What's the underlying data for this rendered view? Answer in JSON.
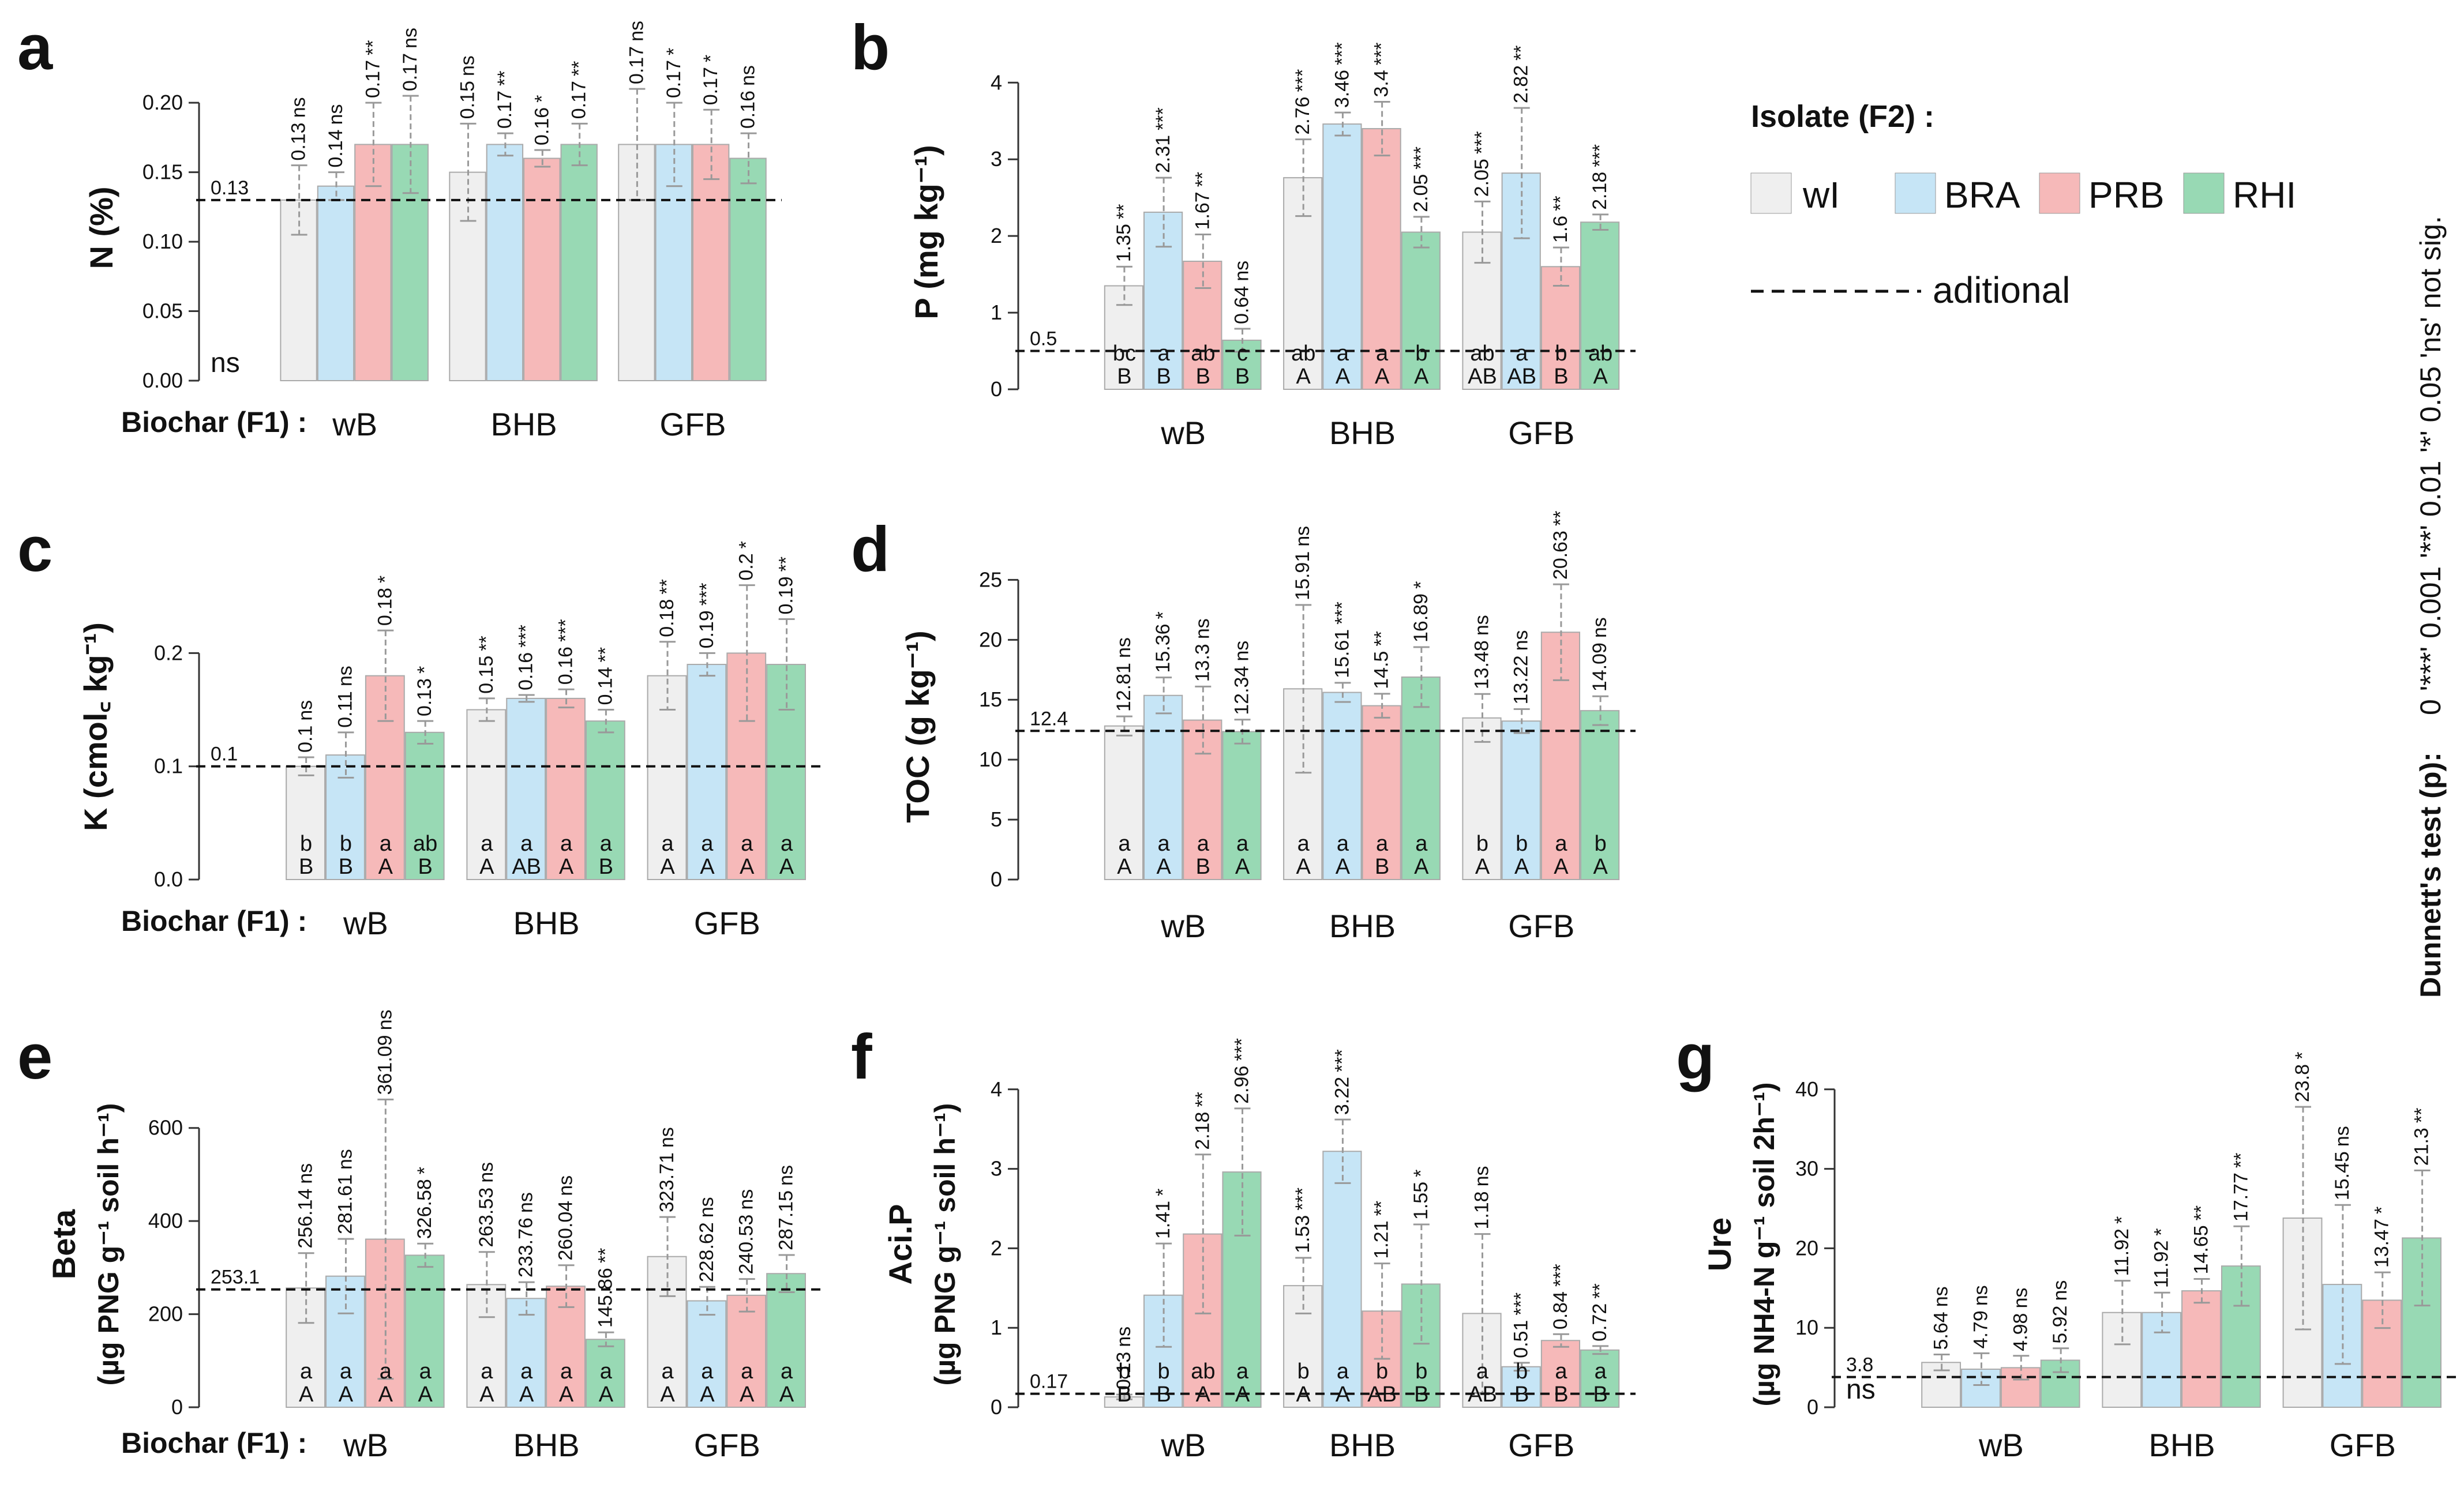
{
  "legend": {
    "title": "Isolate (F2) :",
    "items": [
      "wI",
      "BRA",
      "PRB",
      "RHI"
    ],
    "colors": [
      "#efefef",
      "#c6e5f6",
      "#f6b9b9",
      "#98d9b4"
    ],
    "dashed_label": "aditional"
  },
  "biochar_label": "Biochar (F1) :",
  "dunnett": {
    "title": "Dunnett's test (p):",
    "scale": "0 '***' 0.001 '**' 0.01 '*' 0.05 'ns' not sig."
  },
  "chart_data": [
    {
      "id": "a",
      "type": "bar",
      "panel_label": "a",
      "ylabel": "N (%)",
      "categories": [
        "wB",
        "BHB",
        "GFB"
      ],
      "ylim": [
        0,
        0.22
      ],
      "yticks": [
        "0.00",
        "0.05",
        "0.10",
        "0.15",
        "0.20"
      ],
      "ytick_values": [
        0,
        0.05,
        0.1,
        0.15,
        0.2
      ],
      "ref_value": 0.13,
      "ref_label": "0.13",
      "note": "ns",
      "show_biochar_label": true,
      "series": [
        {
          "name": "wI",
          "values": [
            0.13,
            0.15,
            0.17
          ],
          "labels": [
            "0.13",
            "0.15",
            "0.17"
          ],
          "sig": [
            "ns",
            "ns",
            "ns"
          ],
          "err": [
            0.025,
            0.035,
            0.04
          ],
          "letters": []
        },
        {
          "name": "BRA",
          "values": [
            0.14,
            0.17,
            0.17
          ],
          "labels": [
            "0.14",
            "0.17",
            "0.17"
          ],
          "sig": [
            "ns",
            "**",
            "*"
          ],
          "err": [
            0.01,
            0.008,
            0.03
          ],
          "letters": []
        },
        {
          "name": "PRB",
          "values": [
            0.17,
            0.16,
            0.17
          ],
          "labels": [
            "0.17",
            "0.16",
            "0.17"
          ],
          "sig": [
            "**",
            "*",
            "*"
          ],
          "err": [
            0.03,
            0.006,
            0.025
          ],
          "letters": []
        },
        {
          "name": "RHI",
          "values": [
            0.17,
            0.17,
            0.16
          ],
          "labels": [
            "0.17",
            "0.17",
            "0.16"
          ],
          "sig": [
            "ns",
            "**",
            "ns"
          ],
          "err": [
            0.035,
            0.015,
            0.018
          ],
          "letters": []
        }
      ]
    },
    {
      "id": "b",
      "type": "bar",
      "panel_label": "b",
      "ylabel": "P (mg kg⁻¹)",
      "categories": [
        "wB",
        "BHB",
        "GFB"
      ],
      "ylim": [
        0,
        4.1
      ],
      "yticks": [
        "0",
        "1",
        "2",
        "3",
        "4"
      ],
      "ytick_values": [
        0,
        1,
        2,
        3,
        4
      ],
      "ref_value": 0.5,
      "ref_label": "0.5",
      "note": "",
      "show_biochar_label": false,
      "series": [
        {
          "name": "wI",
          "values": [
            1.35,
            2.76,
            2.05
          ],
          "labels": [
            "1.35",
            "2.76",
            "2.05"
          ],
          "sig": [
            "**",
            "***",
            "***"
          ],
          "err": [
            0.25,
            0.5,
            0.4
          ],
          "letters": [
            "bc\nB",
            "ab\nA",
            "ab\nAB"
          ]
        },
        {
          "name": "BRA",
          "values": [
            2.31,
            3.46,
            2.82
          ],
          "labels": [
            "2.31",
            "3.46",
            "2.82"
          ],
          "sig": [
            "***",
            "***",
            "**"
          ],
          "err": [
            0.45,
            0.15,
            0.85
          ],
          "letters": [
            "a\nB",
            "a\nA",
            "a\nAB"
          ]
        },
        {
          "name": "PRB",
          "values": [
            1.67,
            3.4,
            1.6
          ],
          "labels": [
            "1.67",
            "3.4",
            "1.6"
          ],
          "sig": [
            "**",
            "***",
            "**"
          ],
          "err": [
            0.35,
            0.35,
            0.25
          ],
          "letters": [
            "ab\nB",
            "a\nA",
            "b\nB"
          ]
        },
        {
          "name": "RHI",
          "values": [
            0.64,
            2.05,
            2.18
          ],
          "labels": [
            "0.64",
            "2.05",
            "2.18"
          ],
          "sig": [
            "ns",
            "***",
            "***"
          ],
          "err": [
            0.15,
            0.2,
            0.1
          ],
          "letters": [
            "c\nB",
            "b\nA",
            "ab\nA"
          ]
        }
      ]
    },
    {
      "id": "c",
      "type": "bar",
      "panel_label": "c",
      "ylabel": "K (cmol꜀ kg⁻¹)",
      "categories": [
        "wB",
        "BHB",
        "GFB"
      ],
      "ylim": [
        0,
        0.27
      ],
      "yticks": [
        "0.0",
        "0.1",
        "0.2"
      ],
      "ytick_values": [
        0,
        0.1,
        0.2
      ],
      "ref_value": 0.1,
      "ref_label": "0.1",
      "note": "",
      "show_biochar_label": true,
      "series": [
        {
          "name": "wI",
          "values": [
            0.1,
            0.15,
            0.18
          ],
          "labels": [
            "0.1",
            "0.15",
            "0.18"
          ],
          "sig": [
            "ns",
            "**",
            "**"
          ],
          "err": [
            0.008,
            0.01,
            0.03
          ],
          "letters": [
            "b\nB",
            "a\nA",
            "a\nA"
          ]
        },
        {
          "name": "BRA",
          "values": [
            0.11,
            0.16,
            0.19
          ],
          "labels": [
            "0.11",
            "0.16",
            "0.19"
          ],
          "sig": [
            "ns",
            "***",
            "***"
          ],
          "err": [
            0.02,
            0.003,
            0.01
          ],
          "letters": [
            "b\nB",
            "a\nAB",
            "a\nA"
          ]
        },
        {
          "name": "PRB",
          "values": [
            0.18,
            0.16,
            0.2
          ],
          "labels": [
            "0.18",
            "0.16",
            "0.2"
          ],
          "sig": [
            "*",
            "***",
            "*"
          ],
          "err": [
            0.04,
            0.008,
            0.06
          ],
          "letters": [
            "a\nA",
            "a\nA",
            "a\nA"
          ]
        },
        {
          "name": "RHI",
          "values": [
            0.13,
            0.14,
            0.19
          ],
          "labels": [
            "0.13",
            "0.14",
            "0.19"
          ],
          "sig": [
            "*",
            "**",
            "**"
          ],
          "err": [
            0.01,
            0.01,
            0.04
          ],
          "letters": [
            "ab\nB",
            "a\nB",
            "a\nA"
          ]
        }
      ]
    },
    {
      "id": "d",
      "type": "bar",
      "panel_label": "d",
      "ylabel": "TOC (g kg⁻¹)",
      "categories": [
        "wB",
        "BHB",
        "GFB"
      ],
      "ylim": [
        0,
        25.5
      ],
      "yticks": [
        "0",
        "5",
        "10",
        "15",
        "20",
        "25"
      ],
      "ytick_values": [
        0,
        5,
        10,
        15,
        20,
        25
      ],
      "ref_value": 12.4,
      "ref_label": "12.4",
      "note": "",
      "show_biochar_label": false,
      "series": [
        {
          "name": "wI",
          "values": [
            12.81,
            15.91,
            13.48
          ],
          "labels": [
            "12.81",
            "15.91",
            "13.48"
          ],
          "sig": [
            "ns",
            "ns",
            "ns"
          ],
          "err": [
            0.8,
            7.0,
            2.0
          ],
          "letters": [
            "a\nA",
            "a\nA",
            "b\nA"
          ]
        },
        {
          "name": "BRA",
          "values": [
            15.36,
            15.61,
            13.22
          ],
          "labels": [
            "15.36",
            "15.61",
            "13.22"
          ],
          "sig": [
            "*",
            "***",
            "ns"
          ],
          "err": [
            1.5,
            0.8,
            1.0
          ],
          "letters": [
            "a\nA",
            "a\nA",
            "b\nA"
          ]
        },
        {
          "name": "PRB",
          "values": [
            13.3,
            14.5,
            20.63
          ],
          "labels": [
            "13.3",
            "14.5",
            "20.63"
          ],
          "sig": [
            "ns",
            "**",
            "**"
          ],
          "err": [
            2.8,
            1.0,
            4.0
          ],
          "letters": [
            "a\nB",
            "a\nB",
            "a\nA"
          ]
        },
        {
          "name": "RHI",
          "values": [
            12.34,
            16.89,
            14.09
          ],
          "labels": [
            "12.34",
            "16.89",
            "14.09"
          ],
          "sig": [
            "ns",
            "*",
            "ns"
          ],
          "err": [
            1.0,
            2.5,
            1.2
          ],
          "letters": [
            "a\nA",
            "a\nA",
            "b\nA"
          ]
        }
      ]
    },
    {
      "id": "e",
      "type": "bar",
      "panel_label": "e",
      "ylabel": "Beta",
      "ylabel2": "(µg PNG g⁻¹ soil h⁻¹)",
      "categories": [
        "wB",
        "BHB",
        "GFB"
      ],
      "ylim": [
        0,
        700
      ],
      "yticks": [
        "0",
        "200",
        "400",
        "600"
      ],
      "ytick_values": [
        0,
        200,
        400,
        600
      ],
      "ref_value": 253.1,
      "ref_label": "253.1",
      "note": "",
      "show_biochar_label": true,
      "series": [
        {
          "name": "wI",
          "values": [
            256.14,
            263.53,
            323.71
          ],
          "labels": [
            "256.14",
            "263.53",
            "323.71"
          ],
          "sig": [
            "ns",
            "ns",
            "ns"
          ],
          "err": [
            75,
            70,
            85
          ],
          "letters": [
            "a\nA",
            "a\nA",
            "a\nA"
          ]
        },
        {
          "name": "BRA",
          "values": [
            281.61,
            233.76,
            228.62
          ],
          "labels": [
            "281.61",
            "233.76",
            "228.62"
          ],
          "sig": [
            "ns",
            "ns",
            "ns"
          ],
          "err": [
            80,
            35,
            30
          ],
          "letters": [
            "a\nA",
            "a\nA",
            "a\nA"
          ]
        },
        {
          "name": "PRB",
          "values": [
            361.09,
            260.04,
            240.53
          ],
          "labels": [
            "361.09",
            "260.04",
            "240.53"
          ],
          "sig": [
            "ns",
            "ns",
            "ns"
          ],
          "err": [
            300,
            45,
            35
          ],
          "letters": [
            "a\nA",
            "a\nA",
            "a\nA"
          ]
        },
        {
          "name": "RHI",
          "values": [
            326.58,
            145.86,
            287.15
          ],
          "labels": [
            "326.58",
            "145.86",
            "287.15"
          ],
          "sig": [
            "*",
            "**",
            "ns"
          ],
          "err": [
            25,
            15,
            40
          ],
          "letters": [
            "a\nA",
            "a\nA",
            "a\nA"
          ]
        }
      ]
    },
    {
      "id": "f",
      "type": "bar",
      "panel_label": "f",
      "ylabel": "Aci.P",
      "ylabel2": "(µg PNG g⁻¹ soil h⁻¹)",
      "categories": [
        "wB",
        "BHB",
        "GFB"
      ],
      "ylim": [
        0,
        4.1
      ],
      "yticks": [
        "0",
        "1",
        "2",
        "3",
        "4"
      ],
      "ytick_values": [
        0,
        1,
        2,
        3,
        4
      ],
      "ref_value": 0.17,
      "ref_label": "0.17",
      "note": "",
      "show_biochar_label": false,
      "series": [
        {
          "name": "wI",
          "values": [
            0.13,
            1.53,
            1.18
          ],
          "labels": [
            "0.13",
            "1.53",
            "1.18"
          ],
          "sig": [
            "ns",
            "***",
            "ns"
          ],
          "err": [
            0.03,
            0.35,
            1.0
          ],
          "letters": [
            "b\nB",
            "b\nA",
            "a\nAB"
          ]
        },
        {
          "name": "BRA",
          "values": [
            1.41,
            3.22,
            0.51
          ],
          "labels": [
            "1.41",
            "3.22",
            "0.51"
          ],
          "sig": [
            "*",
            "***",
            "***"
          ],
          "err": [
            0.65,
            0.4,
            0.05
          ],
          "letters": [
            "b\nB",
            "a\nA",
            "b\nB"
          ]
        },
        {
          "name": "PRB",
          "values": [
            2.18,
            1.21,
            0.84
          ],
          "labels": [
            "2.18",
            "1.21",
            "0.84"
          ],
          "sig": [
            "**",
            "**",
            "***"
          ],
          "err": [
            1.0,
            0.6,
            0.08
          ],
          "letters": [
            "ab\nA",
            "b\nAB",
            "a\nB"
          ]
        },
        {
          "name": "RHI",
          "values": [
            2.96,
            1.55,
            0.72
          ],
          "labels": [
            "2.96",
            "1.55",
            "0.72"
          ],
          "sig": [
            "***",
            "*",
            "**"
          ],
          "err": [
            0.8,
            0.75,
            0.05
          ],
          "letters": [
            "a\nA",
            "b\nB",
            "a\nB"
          ]
        }
      ]
    },
    {
      "id": "g",
      "type": "bar",
      "panel_label": "g",
      "ylabel": "Ure",
      "ylabel2": "(µg NH4-N g⁻¹ soil 2h⁻¹)",
      "categories": [
        "wB",
        "BHB",
        "GFB"
      ],
      "ylim": [
        0,
        41
      ],
      "yticks": [
        "0",
        "10",
        "20",
        "30",
        "40"
      ],
      "ytick_values": [
        0,
        10,
        20,
        30,
        40
      ],
      "ref_value": 3.8,
      "ref_label": "3.8",
      "note": "ns",
      "show_biochar_label": false,
      "series": [
        {
          "name": "wI",
          "values": [
            5.64,
            11.92,
            23.8
          ],
          "labels": [
            "5.64",
            "11.92",
            "23.8"
          ],
          "sig": [
            "ns",
            "*",
            "*"
          ],
          "err": [
            1.0,
            4.0,
            14.0
          ],
          "letters": []
        },
        {
          "name": "BRA",
          "values": [
            4.79,
            11.92,
            15.45
          ],
          "labels": [
            "4.79",
            "11.92",
            "15.45"
          ],
          "sig": [
            "ns",
            "*",
            "ns"
          ],
          "err": [
            2.0,
            2.5,
            10.0
          ],
          "letters": []
        },
        {
          "name": "PRB",
          "values": [
            4.98,
            14.65,
            13.47
          ],
          "labels": [
            "4.98",
            "14.65",
            "13.47"
          ],
          "sig": [
            "ns",
            "**",
            "*"
          ],
          "err": [
            1.5,
            1.5,
            3.5
          ],
          "letters": []
        },
        {
          "name": "RHI",
          "values": [
            5.92,
            17.77,
            21.3
          ],
          "labels": [
            "5.92",
            "17.77",
            "21.3"
          ],
          "sig": [
            "ns",
            "**",
            "**"
          ],
          "err": [
            1.5,
            5.0,
            8.5
          ],
          "letters": []
        }
      ]
    }
  ]
}
